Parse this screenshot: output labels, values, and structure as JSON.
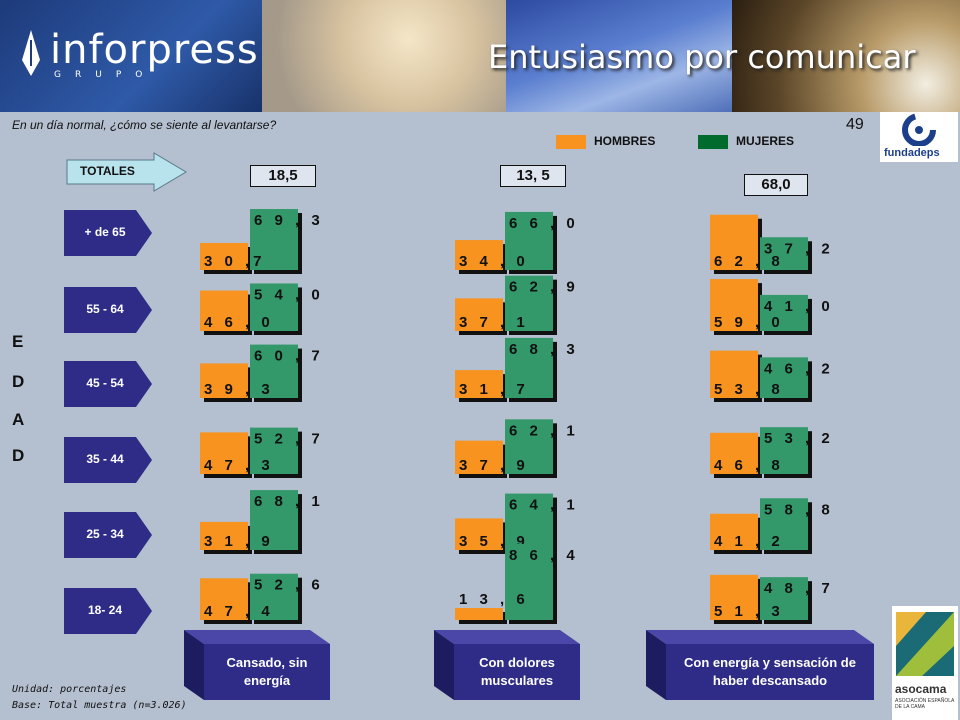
{
  "header": {
    "brand": "inforpress",
    "brand_sub": "GRUPO",
    "title": "Entusiasmo por comunicar"
  },
  "question": "En un día normal, ¿cómo se siente al levantarse?",
  "page_number": "49",
  "logos": {
    "fundadeps": "fundadeps",
    "asocama": "asocama",
    "asocama_sub": "ASOCIACIÓN ESPAÑOLA DE LA CAMA"
  },
  "legend": {
    "hombres": "HOMBRES",
    "mujeres": "MUJERES"
  },
  "totales_label": "TOTALES",
  "totals": [
    "18,5",
    "13, 5",
    "68,0"
  ],
  "age_groups": [
    "+ de 65",
    "55 - 64",
    "45 - 54",
    "35 - 44",
    "25 - 34",
    "18- 24"
  ],
  "axis_letters": [
    "E",
    "D",
    "A",
    "D"
  ],
  "categories": [
    "Cansado, sin energía",
    "Con dolores musculares",
    "Con energía y sensación de haber descansado"
  ],
  "footnotes": {
    "unit": "Unidad: porcentajes",
    "base": "Base: Total muestra (n=3.026)"
  },
  "colors": {
    "hombres": "#f7931e",
    "mujeres": "#33996a",
    "arrow": "#2e2c87"
  },
  "chart_data": {
    "type": "bar",
    "stacking": "grouped-by-age",
    "categories": [
      "+ de 65",
      "55 - 64",
      "45 - 54",
      "35 - 44",
      "25 - 34",
      "18- 24"
    ],
    "panels": [
      {
        "name": "Cansado, sin energía",
        "total": "18,5",
        "hombres": [
          30.7,
          46.0,
          39.3,
          47.3,
          31.9,
          47.4
        ],
        "mujeres": [
          69.3,
          54.0,
          60.7,
          52.7,
          68.1,
          52.6
        ],
        "hombres_labels": [
          "3 0 ,7",
          "4 6 , 0",
          "3 9 , 3",
          "4 7 , 3",
          "3 1 , 9",
          "4 7 , 4"
        ],
        "mujeres_labels": [
          "6 9 , 3",
          "5 4 , 0",
          "6 0 , 7",
          "5 2 , 7",
          "6 8 , 1",
          "5 2 , 6"
        ]
      },
      {
        "name": "Con dolores musculares",
        "total": "13, 5",
        "hombres": [
          34.0,
          37.1,
          31.7,
          37.9,
          35.9,
          13.6
        ],
        "mujeres": [
          66.0,
          62.9,
          68.3,
          62.1,
          64.1,
          86.4
        ],
        "hombres_labels": [
          "3 4 , 0",
          "3 7 , 1",
          "3 1 , 7",
          "3 7 , 9",
          "3 5 , 9",
          "1 3 , 6"
        ],
        "mujeres_labels": [
          "6 6 , 0",
          "6 2 , 9",
          "6 8 , 3",
          "6 2 , 1",
          "6 4 , 1",
          "8 6 , 4"
        ]
      },
      {
        "name": "Con energía y sensación de haber descansado",
        "total": "68,0",
        "hombres": [
          62.8,
          59.0,
          53.8,
          46.8,
          41.2,
          51.3
        ],
        "mujeres": [
          37.2,
          41.0,
          46.2,
          53.2,
          58.8,
          48.7
        ],
        "hombres_labels": [
          "6 2 , 8",
          "5 9 , 0",
          "5 3 , 8",
          "4 6 , 8",
          "4 1 , 2",
          "5 1 , 3"
        ],
        "mujeres_labels": [
          "3 7 , 2",
          "4 1 , 0",
          "4 6 , 2",
          "5 3 , 2",
          "5 8 , 8",
          "4 8 , 7"
        ]
      }
    ],
    "ylim": [
      0,
      100
    ]
  }
}
